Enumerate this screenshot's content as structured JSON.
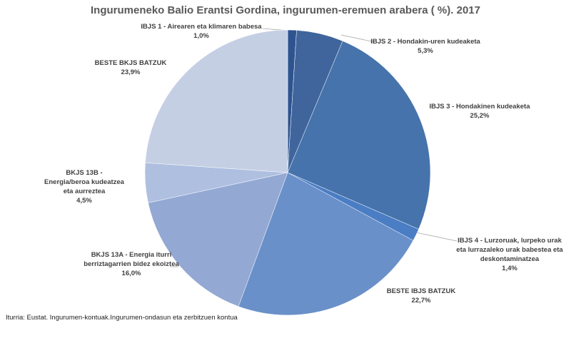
{
  "chart_data": {
    "type": "pie",
    "title": "Ingurumeneko Balio Erantsi Gordina, ingurumen-eremuen arabera ( %). 2017",
    "categories": [
      "IBJS 1 - Airearen eta klimaren babesa",
      "IBJS 2 - Hondakin-uren kudeaketa",
      "IBJS 3 - Hondakinen kudeaketa",
      "IBJS 4 - Lurzoruak, lurpeko urak eta lurrazaleko urak babestea eta deskontaminatzea",
      "BESTE IBJS BATZUK",
      "BKJS 13A - Energia iturri berriztagarrien bidez ekoiztea",
      "BKJS 13B - Energia/beroa kudeatzea eta aurreztea",
      "BESTE BKJS BATZUK"
    ],
    "values": [
      1.0,
      5.3,
      25.2,
      1.4,
      22.7,
      16.0,
      4.5,
      23.9
    ],
    "value_labels": [
      "1,0%",
      "5,3%",
      "25,2%",
      "1,4%",
      "22,7%",
      "16,0%",
      "4,5%",
      "23,9%"
    ],
    "colors": [
      "#2e5490",
      "#3f659c",
      "#4673ab",
      "#4a7dc4",
      "#6a90c9",
      "#93a9d3",
      "#aebfe0",
      "#c5cfe4"
    ],
    "source": "Iturria: Eustat. Ingurumen-kontuak.Ingurumen-ondasun eta zerbitzuen kontua"
  }
}
